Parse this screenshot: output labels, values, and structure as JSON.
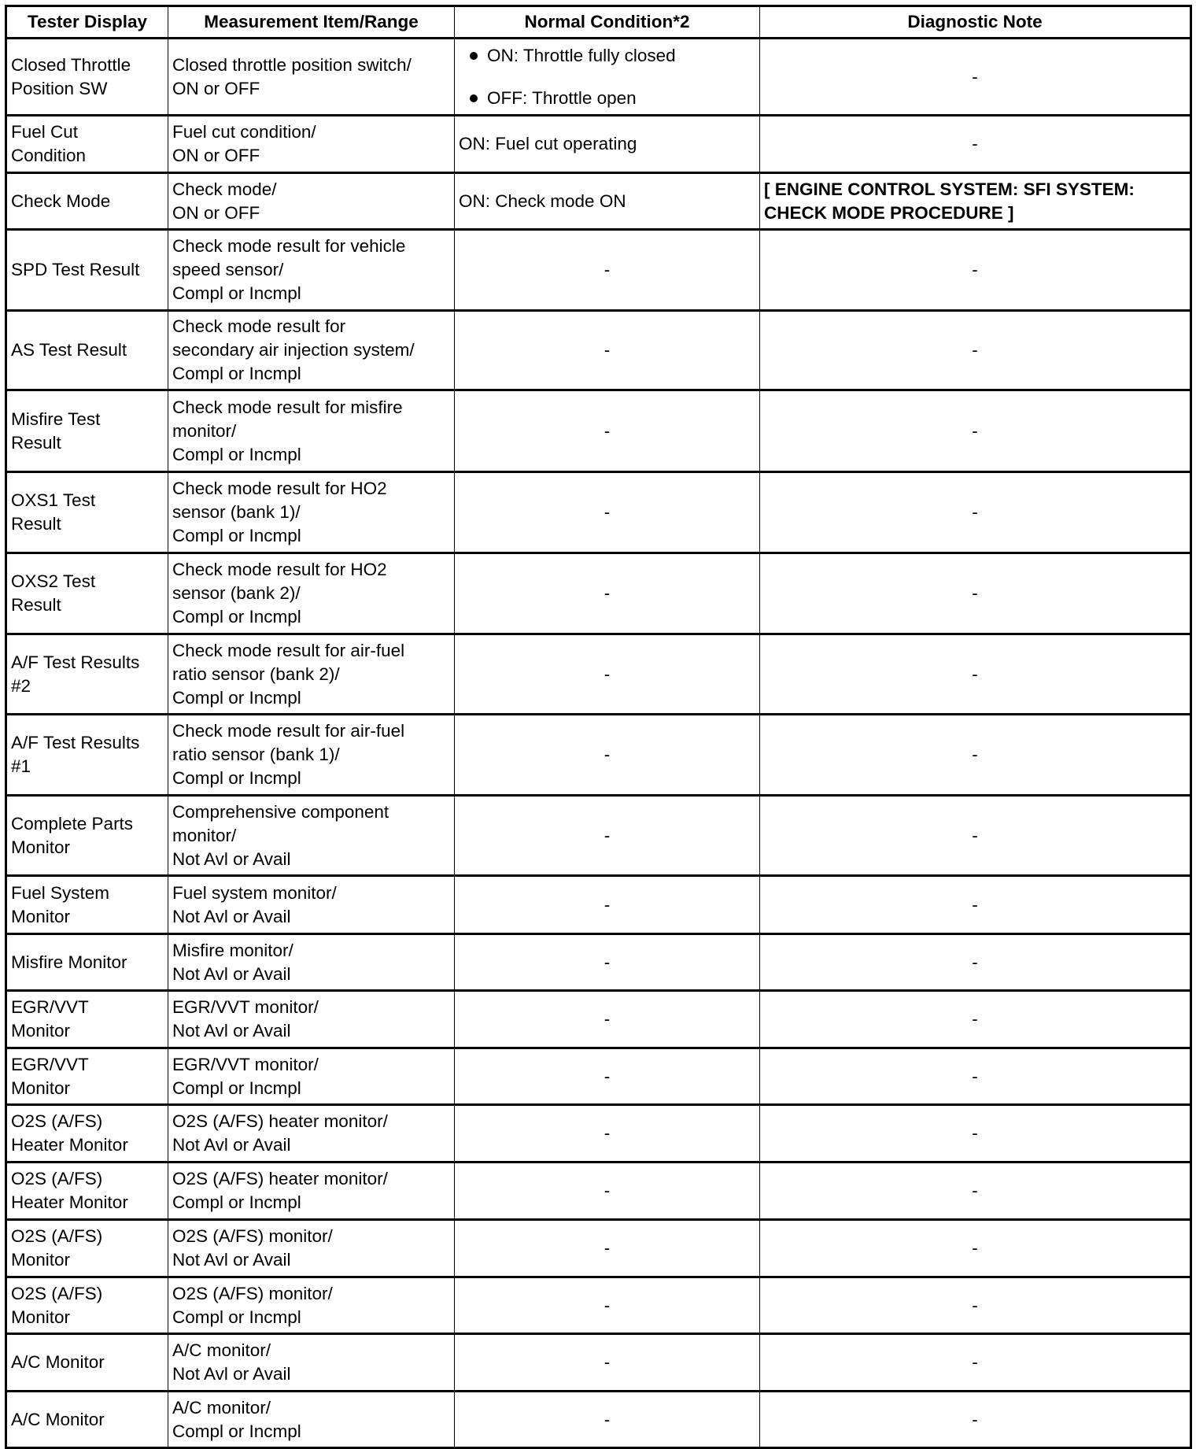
{
  "headers": [
    "Tester Display",
    "Measurement Item/Range",
    "Normal Condition*2",
    "Diagnostic Note"
  ],
  "rows": [
    {
      "display": "Closed Throttle\nPosition SW",
      "item": "Closed throttle position switch/\nON or OFF",
      "normal_list": [
        "ON: Throttle fully closed",
        "OFF: Throttle open"
      ],
      "note": "-"
    },
    {
      "display": "Fuel Cut\nCondition",
      "item": "Fuel cut condition/\nON or OFF",
      "normal": "ON: Fuel cut operating",
      "note": "-"
    },
    {
      "display": "Check Mode",
      "item": "Check mode/\nON or OFF",
      "normal": "ON: Check mode ON",
      "note": "[ ENGINE CONTROL SYSTEM: SFI SYSTEM: CHECK MODE PROCEDURE ]",
      "note_link": true
    },
    {
      "display": "SPD Test Result",
      "item": "Check mode result for vehicle\nspeed sensor/\nCompl or Incmpl",
      "normal": "-",
      "note": "-"
    },
    {
      "display": "AS Test Result",
      "item": "Check mode result for\nsecondary air injection system/\nCompl or Incmpl",
      "normal": "-",
      "note": "-"
    },
    {
      "display": "Misfire Test\nResult",
      "item": "Check mode result for misfire\nmonitor/\nCompl or Incmpl",
      "normal": "-",
      "note": "-"
    },
    {
      "display": "OXS1 Test\nResult",
      "item": "Check mode result for HO2\nsensor (bank 1)/\nCompl or Incmpl",
      "normal": "-",
      "note": "-"
    },
    {
      "display": "OXS2 Test\nResult",
      "item": "Check mode result for HO2\nsensor (bank 2)/\nCompl or Incmpl",
      "normal": "-",
      "note": "-"
    },
    {
      "display": "A/F Test Results\n#2",
      "item": "Check mode result for air-fuel\nratio sensor (bank 2)/\nCompl or Incmpl",
      "normal": "-",
      "note": "-"
    },
    {
      "display": "A/F Test Results\n#1",
      "item": "Check mode result for air-fuel\nratio sensor (bank 1)/\nCompl or Incmpl",
      "normal": "-",
      "note": "-"
    },
    {
      "display": "Complete Parts\nMonitor",
      "item": "Comprehensive component\nmonitor/\nNot Avl or Avail",
      "normal": "-",
      "note": "-"
    },
    {
      "display": "Fuel System\nMonitor",
      "item": "Fuel system monitor/\nNot Avl or Avail",
      "normal": "-",
      "note": "-"
    },
    {
      "display": "Misfire Monitor",
      "item": "Misfire monitor/\nNot Avl or Avail",
      "normal": "-",
      "note": "-"
    },
    {
      "display": "EGR/VVT\nMonitor",
      "item": "EGR/VVT monitor/\nNot Avl or Avail",
      "normal": "-",
      "note": "-"
    },
    {
      "display": "EGR/VVT\nMonitor",
      "item": "EGR/VVT monitor/\nCompl or Incmpl",
      "normal": "-",
      "note": "-"
    },
    {
      "display": "O2S (A/FS)\nHeater Monitor",
      "item": "O2S (A/FS) heater monitor/\nNot Avl or Avail",
      "normal": "-",
      "note": "-"
    },
    {
      "display": "O2S (A/FS)\nHeater Monitor",
      "item": "O2S (A/FS) heater monitor/\nCompl or Incmpl",
      "normal": "-",
      "note": "-"
    },
    {
      "display": "O2S (A/FS)\nMonitor",
      "item": "O2S (A/FS) monitor/\nNot Avl or Avail",
      "normal": "-",
      "note": "-"
    },
    {
      "display": "O2S (A/FS)\nMonitor",
      "item": "O2S (A/FS) monitor/\nCompl or Incmpl",
      "normal": "-",
      "note": "-"
    },
    {
      "display": "A/C Monitor",
      "item": "A/C monitor/\nNot Avl or Avail",
      "normal": "-",
      "note": "-"
    },
    {
      "display": "A/C Monitor",
      "item": "A/C monitor/\nCompl or Incmpl",
      "normal": "-",
      "note": "-"
    }
  ]
}
